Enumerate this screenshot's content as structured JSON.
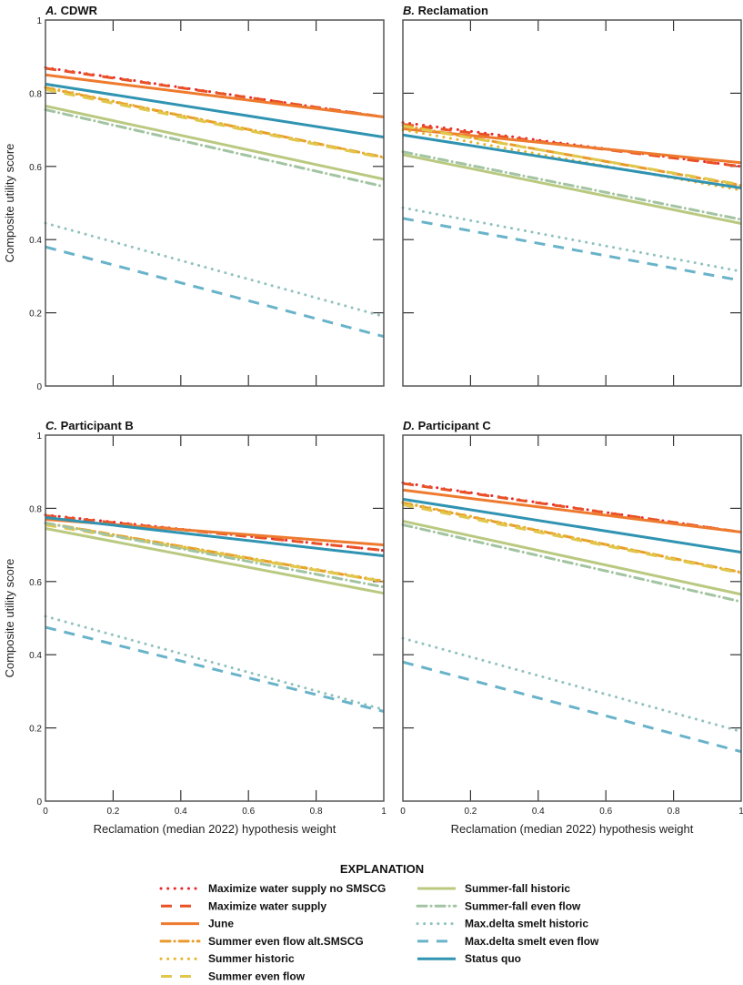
{
  "legend": {
    "title": "EXPLANATION",
    "position": "bottom"
  },
  "series_styles": [
    {
      "name": "Maximize water supply no SMSCG",
      "color": "#e8262a",
      "style": "dotted"
    },
    {
      "name": "Maximize water supply",
      "color": "#e95127",
      "style": "dashed"
    },
    {
      "name": "June",
      "color": "#ee7a2e",
      "style": "solid"
    },
    {
      "name": "Summer even flow alt.SMSCG",
      "color": "#e99a2c",
      "style": "dash-dot"
    },
    {
      "name": "Summer historic",
      "color": "#e6b32a",
      "style": "dotted"
    },
    {
      "name": "Summer even flow",
      "color": "#e0c74c",
      "style": "dashed"
    },
    {
      "name": "Summer-fall historic",
      "color": "#b9c980",
      "style": "solid"
    },
    {
      "name": "Summer-fall even flow",
      "color": "#a2c4a2",
      "style": "dash-dot"
    },
    {
      "name": "Max.delta smelt historic",
      "color": "#8fc1bd",
      "style": "dotted"
    },
    {
      "name": "Max.delta smelt even flow",
      "color": "#68b3c9",
      "style": "dashed"
    },
    {
      "name": "Status quo",
      "color": "#2f93b1",
      "style": "solid"
    }
  ],
  "chart_data": [
    {
      "type": "line",
      "letter": "A.",
      "title": "CDWR",
      "xlabel": "",
      "ylabel": "Composite utility score",
      "xlim": [
        0,
        1
      ],
      "ylim": [
        0,
        1
      ],
      "xticks": [
        "0",
        "0.2",
        "0.4",
        "0.6",
        "0.8",
        "1"
      ],
      "yticks": [
        "0",
        "0.2",
        "0.4",
        "0.6",
        "0.8",
        "1"
      ],
      "show_xticklabels": false,
      "show_yticklabels": true,
      "grid": false,
      "x": [
        0,
        1
      ],
      "series": [
        {
          "name": "Maximize water supply no SMSCG",
          "values": [
            0.87,
            0.735
          ]
        },
        {
          "name": "Maximize water supply",
          "values": [
            0.868,
            0.735
          ]
        },
        {
          "name": "June",
          "values": [
            0.85,
            0.735
          ]
        },
        {
          "name": "Summer even flow alt.SMSCG",
          "values": [
            0.815,
            0.625
          ]
        },
        {
          "name": "Summer historic",
          "values": [
            0.817,
            0.625
          ]
        },
        {
          "name": "Summer even flow",
          "values": [
            0.81,
            0.623
          ]
        },
        {
          "name": "Summer-fall historic",
          "values": [
            0.765,
            0.565
          ]
        },
        {
          "name": "Summer-fall even flow",
          "values": [
            0.755,
            0.545
          ]
        },
        {
          "name": "Max.delta smelt historic",
          "values": [
            0.445,
            0.19
          ]
        },
        {
          "name": "Max.delta smelt even flow",
          "values": [
            0.38,
            0.135
          ]
        },
        {
          "name": "Status quo",
          "values": [
            0.825,
            0.68
          ]
        }
      ]
    },
    {
      "type": "line",
      "letter": "B.",
      "title": "Reclamation",
      "xlabel": "",
      "ylabel": "",
      "xlim": [
        0,
        1
      ],
      "ylim": [
        0,
        1
      ],
      "xticks": [
        "0",
        "0.2",
        "0.4",
        "0.6",
        "0.8",
        "1"
      ],
      "yticks": [
        "0",
        "0.2",
        "0.4",
        "0.6",
        "0.8",
        "1"
      ],
      "show_xticklabels": false,
      "show_yticklabels": false,
      "grid": false,
      "x": [
        0,
        1
      ],
      "series": [
        {
          "name": "Maximize water supply no SMSCG",
          "values": [
            0.72,
            0.6
          ]
        },
        {
          "name": "Maximize water supply",
          "values": [
            0.715,
            0.6
          ]
        },
        {
          "name": "June",
          "values": [
            0.703,
            0.61
          ]
        },
        {
          "name": "Summer even flow alt.SMSCG",
          "values": [
            0.712,
            0.548
          ]
        },
        {
          "name": "Summer historic",
          "values": [
            0.7,
            0.535
          ]
        },
        {
          "name": "Summer even flow",
          "values": [
            0.71,
            0.55
          ]
        },
        {
          "name": "Summer-fall historic",
          "values": [
            0.632,
            0.444
          ]
        },
        {
          "name": "Summer-fall even flow",
          "values": [
            0.64,
            0.455
          ]
        },
        {
          "name": "Max.delta smelt historic",
          "values": [
            0.487,
            0.313
          ]
        },
        {
          "name": "Max.delta smelt even flow",
          "values": [
            0.458,
            0.288
          ]
        },
        {
          "name": "Status quo",
          "values": [
            0.686,
            0.541
          ]
        }
      ]
    },
    {
      "type": "line",
      "letter": "C.",
      "title": "Participant B",
      "xlabel": "Reclamation (median 2022) hypothesis weight",
      "ylabel": "Composite utility score",
      "xlim": [
        0,
        1
      ],
      "ylim": [
        0,
        1
      ],
      "xticks": [
        "0",
        "0.2",
        "0.4",
        "0.6",
        "0.8",
        "1"
      ],
      "yticks": [
        "0",
        "0.2",
        "0.4",
        "0.6",
        "0.8",
        "1"
      ],
      "show_xticklabels": true,
      "show_yticklabels": true,
      "grid": false,
      "x": [
        0,
        1
      ],
      "series": [
        {
          "name": "Maximize water supply no SMSCG",
          "values": [
            0.782,
            0.685
          ]
        },
        {
          "name": "Maximize water supply",
          "values": [
            0.78,
            0.685
          ]
        },
        {
          "name": "June",
          "values": [
            0.77,
            0.7
          ]
        },
        {
          "name": "Summer even flow alt.SMSCG",
          "values": [
            0.76,
            0.6
          ]
        },
        {
          "name": "Summer historic",
          "values": [
            0.76,
            0.602
          ]
        },
        {
          "name": "Summer even flow",
          "values": [
            0.755,
            0.6
          ]
        },
        {
          "name": "Summer-fall historic",
          "values": [
            0.745,
            0.568
          ]
        },
        {
          "name": "Summer-fall even flow",
          "values": [
            0.76,
            0.585
          ]
        },
        {
          "name": "Max.delta smelt historic",
          "values": [
            0.505,
            0.25
          ]
        },
        {
          "name": "Max.delta smelt even flow",
          "values": [
            0.475,
            0.245
          ]
        },
        {
          "name": "Status quo",
          "values": [
            0.775,
            0.67
          ]
        }
      ]
    },
    {
      "type": "line",
      "letter": "D.",
      "title": "Participant C",
      "xlabel": "Reclamation (median 2022) hypothesis weight",
      "ylabel": "",
      "xlim": [
        0,
        1
      ],
      "ylim": [
        0,
        1
      ],
      "xticks": [
        "0",
        "0.2",
        "0.4",
        "0.6",
        "0.8",
        "1"
      ],
      "yticks": [
        "0",
        "0.2",
        "0.4",
        "0.6",
        "0.8",
        "1"
      ],
      "show_xticklabels": true,
      "show_yticklabels": false,
      "grid": false,
      "x": [
        0,
        1
      ],
      "series": [
        {
          "name": "Maximize water supply no SMSCG",
          "values": [
            0.87,
            0.735
          ]
        },
        {
          "name": "Maximize water supply",
          "values": [
            0.868,
            0.735
          ]
        },
        {
          "name": "June",
          "values": [
            0.85,
            0.735
          ]
        },
        {
          "name": "Summer even flow alt.SMSCG",
          "values": [
            0.815,
            0.625
          ]
        },
        {
          "name": "Summer historic",
          "values": [
            0.817,
            0.625
          ]
        },
        {
          "name": "Summer even flow",
          "values": [
            0.81,
            0.623
          ]
        },
        {
          "name": "Summer-fall historic",
          "values": [
            0.765,
            0.565
          ]
        },
        {
          "name": "Summer-fall even flow",
          "values": [
            0.755,
            0.545
          ]
        },
        {
          "name": "Max.delta smelt historic",
          "values": [
            0.445,
            0.19
          ]
        },
        {
          "name": "Max.delta smelt even flow",
          "values": [
            0.38,
            0.135
          ]
        },
        {
          "name": "Status quo",
          "values": [
            0.825,
            0.68
          ]
        }
      ]
    }
  ]
}
